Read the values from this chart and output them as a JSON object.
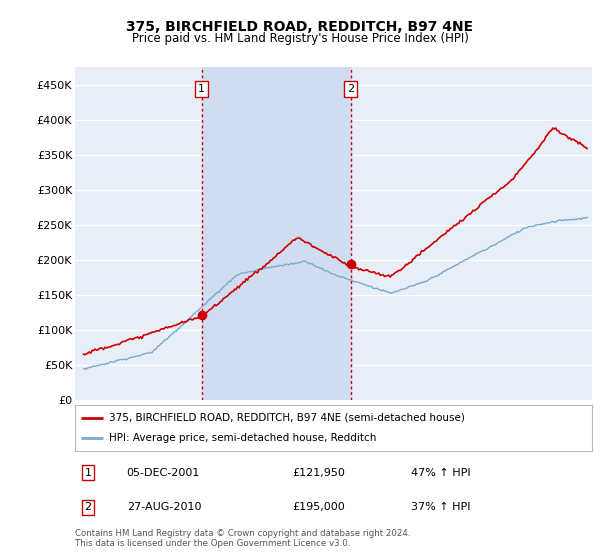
{
  "title": "375, BIRCHFIELD ROAD, REDDITCH, B97 4NE",
  "subtitle": "Price paid vs. HM Land Registry's House Price Index (HPI)",
  "ylabel_ticks": [
    "£0",
    "£50K",
    "£100K",
    "£150K",
    "£200K",
    "£250K",
    "£300K",
    "£350K",
    "£400K",
    "£450K"
  ],
  "ytick_vals": [
    0,
    50000,
    100000,
    150000,
    200000,
    250000,
    300000,
    350000,
    400000,
    450000
  ],
  "ylim": [
    0,
    475000
  ],
  "xlim_start": 1994.5,
  "xlim_end": 2024.8,
  "background_color": "#ffffff",
  "plot_bg_color": "#e8eef8",
  "shade_color": "#d0dcf0",
  "grid_color": "#ffffff",
  "red_line_color": "#cc0000",
  "blue_line_color": "#7aaad0",
  "vline_color": "#cc0000",
  "marker1_x": 2001.92,
  "marker1_y": 121950,
  "marker1_label": "1",
  "marker2_x": 2010.65,
  "marker2_y": 195000,
  "marker2_label": "2",
  "legend_line1": "375, BIRCHFIELD ROAD, REDDITCH, B97 4NE (semi-detached house)",
  "legend_line2": "HPI: Average price, semi-detached house, Redditch",
  "table_row1": [
    "1",
    "05-DEC-2001",
    "£121,950",
    "47% ↑ HPI"
  ],
  "table_row2": [
    "2",
    "27-AUG-2010",
    "£195,000",
    "37% ↑ HPI"
  ],
  "footer": "Contains HM Land Registry data © Crown copyright and database right 2024.\nThis data is licensed under the Open Government Licence v3.0.",
  "sale1_year": 2001.92,
  "sale2_year": 2010.65
}
